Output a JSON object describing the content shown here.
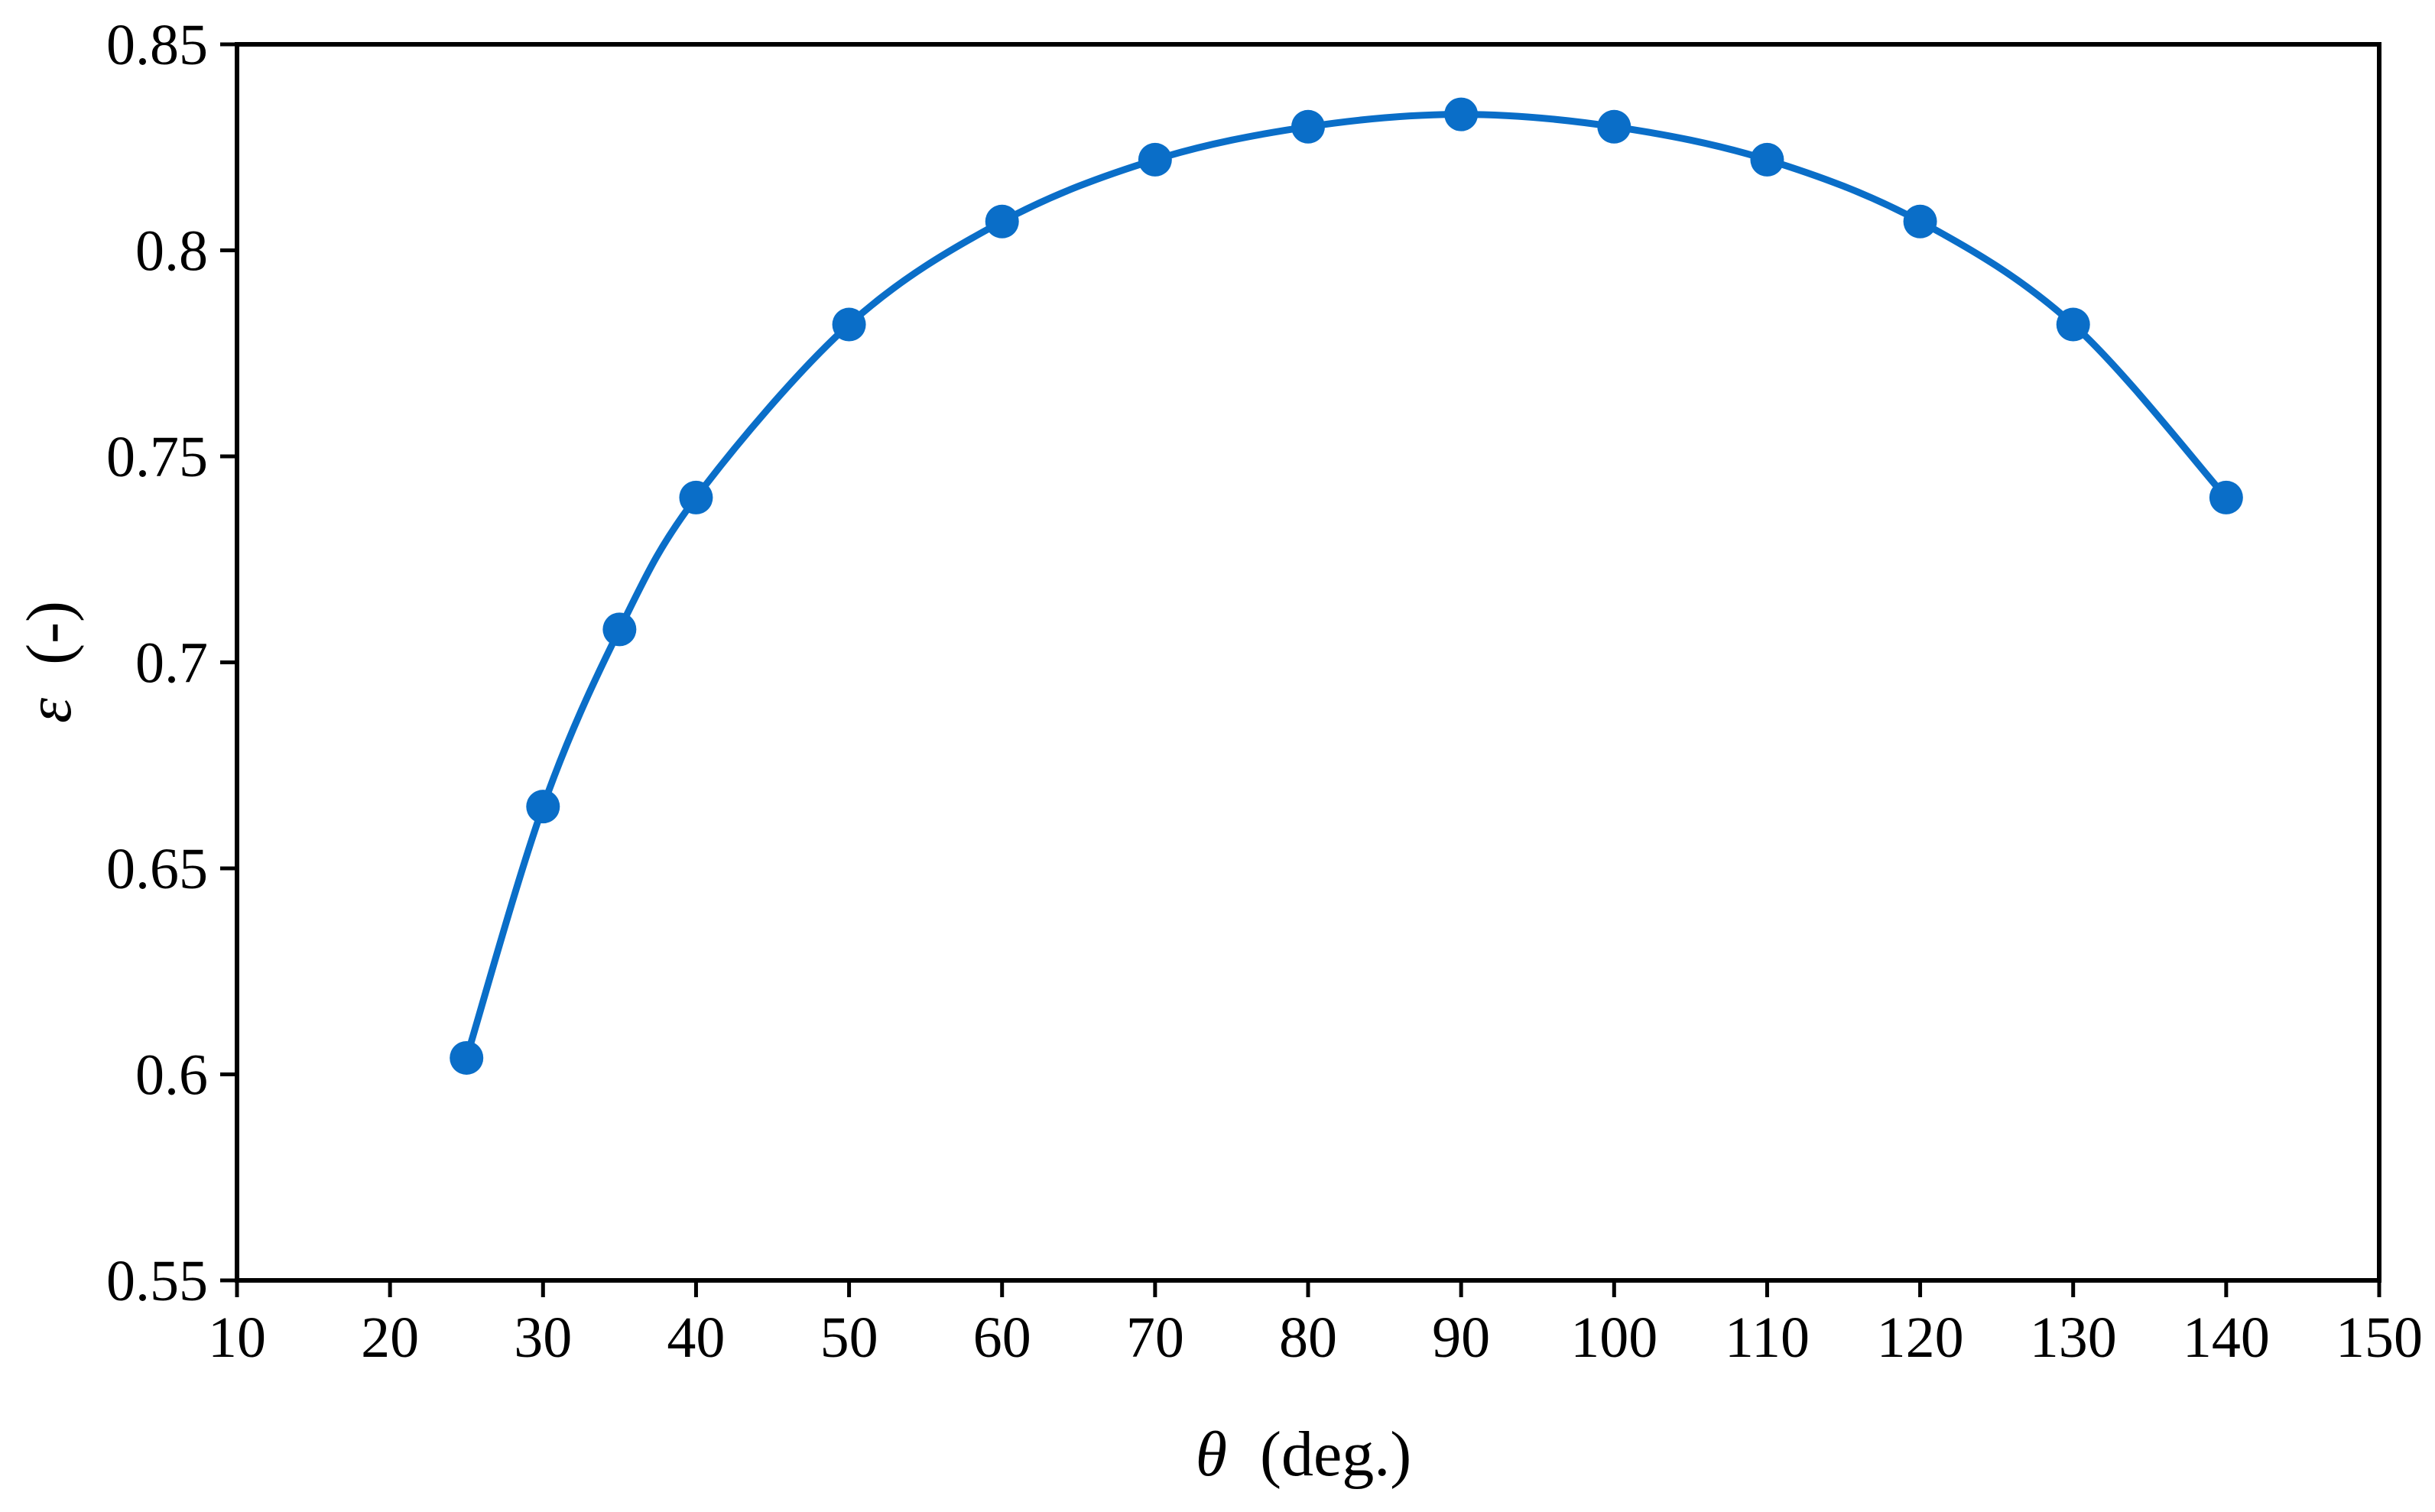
{
  "chart_data": {
    "type": "line",
    "title": "",
    "xlabel": {
      "symbol": "θ",
      "unit": "(deg.)"
    },
    "ylabel": {
      "symbol": "ε",
      "unit": "(-)"
    },
    "xlim": [
      10,
      150
    ],
    "ylim": [
      0.55,
      0.85
    ],
    "x_ticks": [
      10,
      20,
      30,
      40,
      50,
      60,
      70,
      80,
      90,
      100,
      110,
      120,
      130,
      140,
      150
    ],
    "y_ticks": [
      "0.55",
      "0.6",
      "0.65",
      "0.7",
      "0.75",
      "0.8",
      "0.85"
    ],
    "grid": false,
    "legend": "none",
    "series": [
      {
        "color": "#0a6ec8",
        "marker": "circle",
        "line": "smooth",
        "x": [
          25,
          30,
          35,
          40,
          50,
          60,
          70,
          80,
          90,
          100,
          110,
          120,
          130,
          140
        ],
        "y": [
          0.604,
          0.665,
          0.708,
          0.74,
          0.782,
          0.807,
          0.822,
          0.83,
          0.833,
          0.83,
          0.822,
          0.807,
          0.782,
          0.74
        ]
      }
    ]
  }
}
